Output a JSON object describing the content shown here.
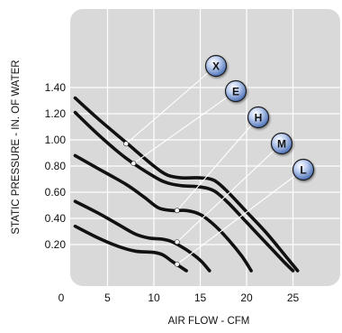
{
  "chart_data": {
    "type": "line",
    "title": "",
    "xlabel": "AIR FLOW - CFM",
    "ylabel": "STATIC PRESSURE - IN. OF WATER",
    "xlim": [
      0,
      29
    ],
    "ylim": [
      0,
      1.4
    ],
    "x_ticks": [
      "0",
      "5",
      "10",
      "15",
      "20",
      "25"
    ],
    "y_ticks": [
      "0.20",
      "0.40",
      "0.60",
      "0.80",
      "1.00",
      "1.20",
      "1.40"
    ],
    "grid": true,
    "colors": {
      "background": "#d9d9d9",
      "grid": "#ffffff",
      "line": "#111111",
      "badge": "#5b7ec0"
    },
    "series": [
      {
        "name": "X",
        "points": [
          [
            1.5,
            1.32
          ],
          [
            4,
            1.16
          ],
          [
            7,
            0.98
          ],
          [
            10,
            0.8
          ],
          [
            11.5,
            0.73
          ],
          [
            13,
            0.71
          ],
          [
            15,
            0.71
          ],
          [
            16.5,
            0.69
          ],
          [
            18,
            0.6
          ],
          [
            20,
            0.45
          ],
          [
            22,
            0.3
          ],
          [
            24,
            0.13
          ],
          [
            25.5,
            0.0
          ]
        ],
        "label_point": [
          7,
          0.97
        ]
      },
      {
        "name": "E",
        "points": [
          [
            1.5,
            1.21
          ],
          [
            4,
            1.04
          ],
          [
            7,
            0.86
          ],
          [
            10,
            0.72
          ],
          [
            11.5,
            0.67
          ],
          [
            13,
            0.65
          ],
          [
            15,
            0.64
          ],
          [
            16.5,
            0.61
          ],
          [
            18,
            0.52
          ],
          [
            20,
            0.37
          ],
          [
            22,
            0.22
          ],
          [
            24,
            0.07
          ],
          [
            25,
            0.0
          ]
        ],
        "label_point": [
          7.8,
          0.82
        ]
      },
      {
        "name": "H",
        "points": [
          [
            1.5,
            0.88
          ],
          [
            4,
            0.78
          ],
          [
            7,
            0.66
          ],
          [
            9,
            0.56
          ],
          [
            10.5,
            0.48
          ],
          [
            12,
            0.46
          ],
          [
            13.5,
            0.46
          ],
          [
            15,
            0.43
          ],
          [
            16.5,
            0.35
          ],
          [
            18,
            0.24
          ],
          [
            19.5,
            0.11
          ],
          [
            20.5,
            0.0
          ]
        ],
        "label_point": [
          12.5,
          0.46
        ]
      },
      {
        "name": "M",
        "points": [
          [
            1.5,
            0.53
          ],
          [
            4,
            0.44
          ],
          [
            6,
            0.36
          ],
          [
            8,
            0.28
          ],
          [
            9.5,
            0.25
          ],
          [
            11,
            0.24
          ],
          [
            12,
            0.22
          ],
          [
            13.5,
            0.16
          ],
          [
            15,
            0.08
          ],
          [
            16,
            0.0
          ]
        ],
        "label_point": [
          12.5,
          0.22
        ]
      },
      {
        "name": "L",
        "points": [
          [
            1.5,
            0.34
          ],
          [
            4,
            0.25
          ],
          [
            6,
            0.19
          ],
          [
            8,
            0.15
          ],
          [
            10,
            0.14
          ],
          [
            11,
            0.12
          ],
          [
            12,
            0.07
          ],
          [
            13.5,
            0.0
          ]
        ],
        "label_point": [
          12.5,
          0.05
        ]
      }
    ],
    "legend": "callout-badges"
  }
}
